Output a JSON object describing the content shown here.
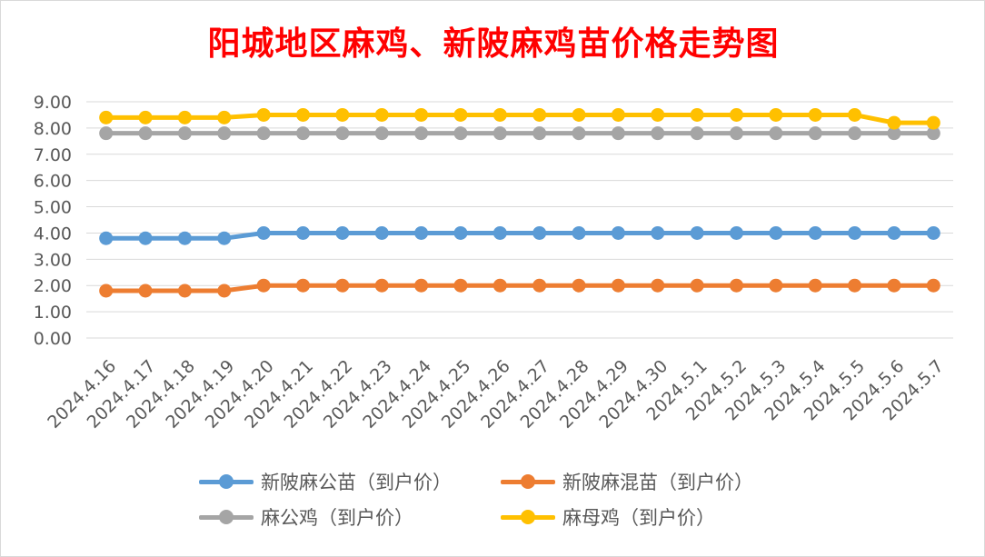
{
  "chart_data": {
    "type": "line",
    "title": "阳城地区麻鸡、新陂麻鸡苗价格走势图",
    "xlabel": "",
    "ylabel": "",
    "ylim": [
      0,
      9
    ],
    "yticks": [
      "0.00",
      "1.00",
      "2.00",
      "3.00",
      "4.00",
      "5.00",
      "6.00",
      "7.00",
      "8.00",
      "9.00"
    ],
    "grid": true,
    "legend_position": "bottom",
    "categories": [
      "2024.4.16",
      "2024.4.17",
      "2024.4.18",
      "2024.4.19",
      "2024.4.20",
      "2024.4.21",
      "2024.4.22",
      "2024.4.23",
      "2024.4.24",
      "2024.4.25",
      "2024.4.26",
      "2024.4.27",
      "2024.4.28",
      "2024.4.29",
      "2024.4.30",
      "2024.5.1",
      "2024.5.2",
      "2024.5.3",
      "2024.5.4",
      "2024.5.5",
      "2024.5.6",
      "2024.5.7"
    ],
    "series": [
      {
        "name": "新陂麻公苗（到户价）",
        "color": "#5b9bd5",
        "values": [
          3.8,
          3.8,
          3.8,
          3.8,
          4.0,
          4.0,
          4.0,
          4.0,
          4.0,
          4.0,
          4.0,
          4.0,
          4.0,
          4.0,
          4.0,
          4.0,
          4.0,
          4.0,
          4.0,
          4.0,
          4.0,
          4.0
        ]
      },
      {
        "name": "新陂麻混苗（到户价）",
        "color": "#ed7d31",
        "values": [
          1.8,
          1.8,
          1.8,
          1.8,
          2.0,
          2.0,
          2.0,
          2.0,
          2.0,
          2.0,
          2.0,
          2.0,
          2.0,
          2.0,
          2.0,
          2.0,
          2.0,
          2.0,
          2.0,
          2.0,
          2.0,
          2.0
        ]
      },
      {
        "name": "麻公鸡（到户价）",
        "color": "#a5a5a5",
        "values": [
          7.8,
          7.8,
          7.8,
          7.8,
          7.8,
          7.8,
          7.8,
          7.8,
          7.8,
          7.8,
          7.8,
          7.8,
          7.8,
          7.8,
          7.8,
          7.8,
          7.8,
          7.8,
          7.8,
          7.8,
          7.8,
          7.8
        ]
      },
      {
        "name": "麻母鸡（到户价）",
        "color": "#ffc000",
        "values": [
          8.4,
          8.4,
          8.4,
          8.4,
          8.5,
          8.5,
          8.5,
          8.5,
          8.5,
          8.5,
          8.5,
          8.5,
          8.5,
          8.5,
          8.5,
          8.5,
          8.5,
          8.5,
          8.5,
          8.5,
          8.2,
          8.2
        ]
      }
    ]
  },
  "colors": {
    "title": "#ff0000",
    "grid": "#d9d9d9",
    "text": "#595959"
  }
}
